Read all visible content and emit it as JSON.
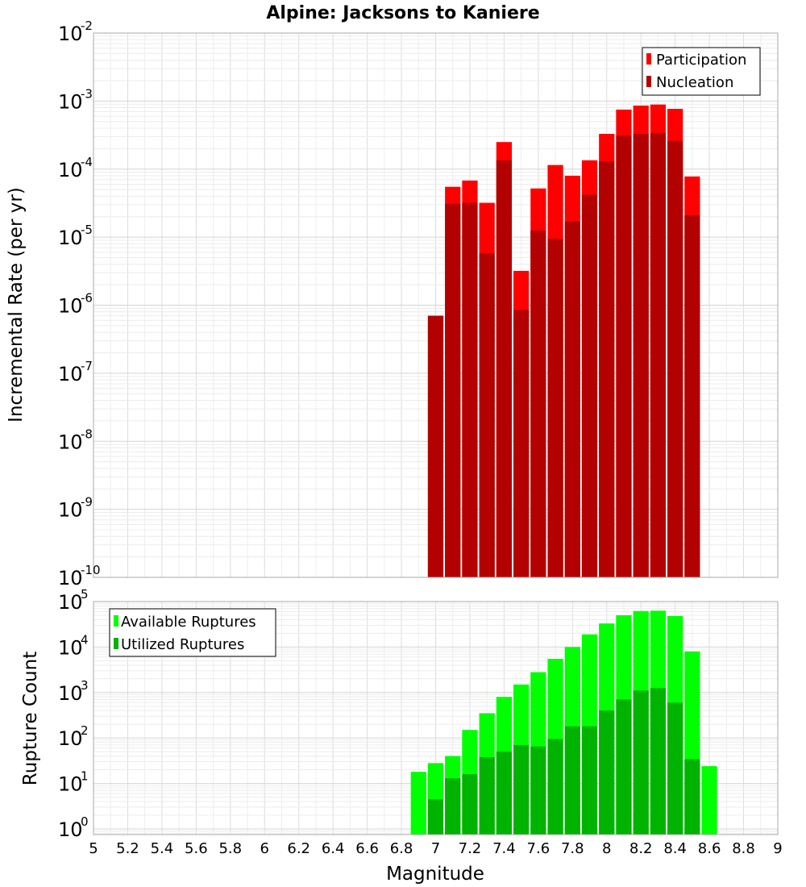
{
  "title": "Alpine: Jacksons to Kaniere",
  "xlabel": "Magnitude",
  "x_ticks": [
    "5",
    "5.2",
    "5.4",
    "5.6",
    "5.8",
    "6",
    "6.2",
    "6.4",
    "6.6",
    "6.8",
    "7",
    "7.2",
    "7.4",
    "7.6",
    "7.8",
    "8",
    "8.2",
    "8.4",
    "8.6",
    "8.8",
    "9"
  ],
  "chart_data": [
    {
      "type": "bar",
      "ylabel": "Incremental Rate (per yr)",
      "yscale": "log",
      "ylim": [
        1e-10,
        0.01
      ],
      "xlim": [
        5,
        9
      ],
      "y_ticks": [
        {
          "base": "10",
          "exp": "-10"
        },
        {
          "base": "10",
          "exp": "-9"
        },
        {
          "base": "10",
          "exp": "-8"
        },
        {
          "base": "10",
          "exp": "-7"
        },
        {
          "base": "10",
          "exp": "-6"
        },
        {
          "base": "10",
          "exp": "-5"
        },
        {
          "base": "10",
          "exp": "-4"
        },
        {
          "base": "10",
          "exp": "-3"
        },
        {
          "base": "10",
          "exp": "-2"
        }
      ],
      "bar_width": 0.1,
      "legend": {
        "position": "top-right"
      },
      "x": [
        7.0,
        7.1,
        7.2,
        7.3,
        7.4,
        7.5,
        7.6,
        7.7,
        7.8,
        7.9,
        8.0,
        8.1,
        8.2,
        8.3,
        8.4,
        8.5
      ],
      "series": [
        {
          "name": "Participation",
          "color": "#ff0000",
          "values": [
            7e-07,
            5.5e-05,
            6.8e-05,
            3.2e-05,
            0.00025,
            3.2e-06,
            5.2e-05,
            0.000115,
            8e-05,
            0.000135,
            0.00033,
            0.00075,
            0.00086,
            0.00089,
            0.00077,
            7.8e-05
          ]
        },
        {
          "name": "Nucleation",
          "color": "#b30000",
          "values": [
            7e-07,
            3.1e-05,
            3.2e-05,
            5.8e-06,
            0.000135,
            8.5e-07,
            1.25e-05,
            9.5e-06,
            1.7e-05,
            4.2e-05,
            0.00013,
            0.00031,
            0.00033,
            0.00034,
            0.00026,
            2.1e-05
          ]
        }
      ]
    },
    {
      "type": "bar",
      "ylabel": "Rupture Count",
      "yscale": "log",
      "ylim": [
        0.75,
        100000
      ],
      "xlim": [
        5,
        9
      ],
      "y_ticks": [
        {
          "base": "10",
          "exp": "0"
        },
        {
          "base": "10",
          "exp": "1"
        },
        {
          "base": "10",
          "exp": "2"
        },
        {
          "base": "10",
          "exp": "3"
        },
        {
          "base": "10",
          "exp": "4"
        },
        {
          "base": "10",
          "exp": "5"
        }
      ],
      "bar_width": 0.1,
      "legend": {
        "position": "top-left"
      },
      "x": [
        6.9,
        7.0,
        7.1,
        7.2,
        7.3,
        7.4,
        7.5,
        7.6,
        7.7,
        7.8,
        7.9,
        8.0,
        8.1,
        8.2,
        8.3,
        8.4,
        8.5,
        8.6
      ],
      "series": [
        {
          "name": "Available Ruptures",
          "color": "#00ff00",
          "values": [
            18,
            28,
            40,
            150,
            350,
            800,
            1500,
            2800,
            5500,
            10000,
            19000,
            33000,
            50000,
            62000,
            63000,
            48000,
            8000,
            24
          ]
        },
        {
          "name": "Utilized Ruptures",
          "color": "#00b300",
          "values": [
            null,
            4.5,
            13,
            16,
            38,
            50,
            70,
            65,
            95,
            180,
            180,
            400,
            700,
            1100,
            1250,
            600,
            34,
            null
          ]
        }
      ]
    }
  ]
}
